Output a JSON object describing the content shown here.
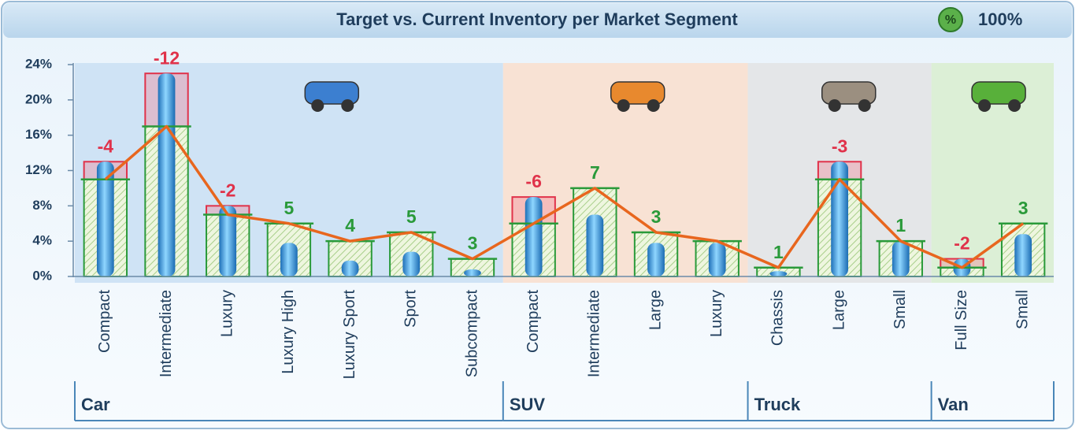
{
  "chart_data": {
    "type": "bar",
    "title": "Target vs. Current Inventory per Market Segment",
    "groups": [
      {
        "name": "Car",
        "color": "#cfe3f5",
        "categories": [
          "Compact",
          "Intermediate",
          "Luxury",
          "Luxury High",
          "Luxury Sport",
          "Sport",
          "Subcompact"
        ]
      },
      {
        "name": "SUV",
        "color": "#f8e2d4",
        "categories": [
          "Compact",
          "Intermediate",
          "Large",
          "Luxury"
        ]
      },
      {
        "name": "Truck",
        "color": "#e4e6e8",
        "categories": [
          "Chassis",
          "Large",
          "Small"
        ]
      },
      {
        "name": "Van",
        "color": "#dcefd6",
        "categories": [
          "Full Size",
          "Small"
        ]
      }
    ],
    "series": [
      {
        "color": "#2a9a3a",
        "values": [
          11,
          17,
          7,
          6,
          4,
          5,
          2,
          6,
          10,
          5,
          4,
          1,
          11,
          4,
          1,
          6
        ]
      },
      {
        "color": "#3aa9ea",
        "values": [
          13,
          23,
          8,
          3.8,
          1.8,
          2.8,
          0.8,
          9,
          7,
          3.8,
          3.8,
          0.6,
          13,
          4,
          2,
          4.8
        ]
      }
    ],
    "differences": [
      -4,
      -12,
      -2,
      5,
      4,
      5,
      3,
      -6,
      7,
      3,
      null,
      1,
      -3,
      1,
      -2,
      3
    ],
    "line_color": "#e8661e",
    "excess_color": "#e0324a",
    "ylim": [
      0,
      24
    ],
    "yticks": [
      {
        "value": 0,
        "label": "0%"
      },
      {
        "value": 4,
        "label": "4%"
      },
      {
        "value": 8,
        "label": "8%"
      },
      {
        "value": 12,
        "label": "12%"
      },
      {
        "value": 16,
        "label": "16%"
      },
      {
        "value": 20,
        "label": "20%"
      },
      {
        "value": 24,
        "label": "24%"
      }
    ]
  },
  "header": {
    "badge": "%",
    "percent": "100%"
  }
}
